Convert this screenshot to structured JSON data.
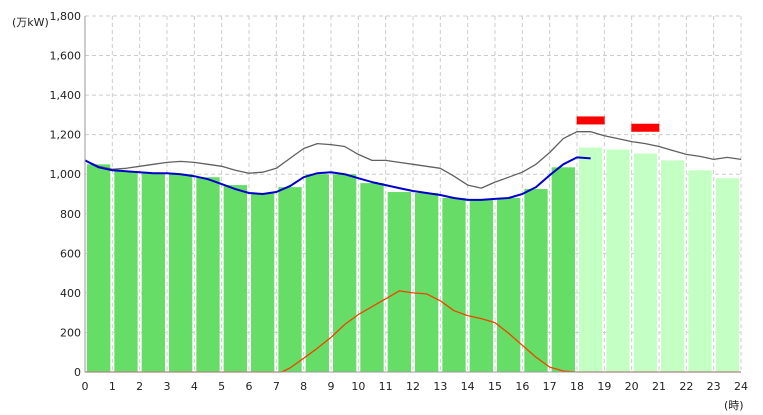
{
  "chart_data": {
    "type": "bar",
    "ylabel": "(万kW)",
    "xlabel": "(時)",
    "ylim": [
      0,
      1800
    ],
    "xlim": [
      0,
      24
    ],
    "y_ticks": [
      0,
      200,
      400,
      600,
      800,
      1000,
      1200,
      1400,
      1600,
      1800
    ],
    "y_tick_labels": [
      "0",
      "200",
      "400",
      "600",
      "800",
      "1,000",
      "1,200",
      "1,400",
      "1,600",
      "1,800"
    ],
    "x_ticks": [
      0,
      1,
      2,
      3,
      4,
      5,
      6,
      7,
      8,
      9,
      10,
      11,
      12,
      13,
      14,
      15,
      16,
      17,
      18,
      19,
      20,
      21,
      22,
      23,
      24
    ],
    "grid": true,
    "bars": {
      "hours": [
        0,
        1,
        2,
        3,
        4,
        5,
        6,
        7,
        8,
        9,
        10,
        11,
        12,
        13,
        14,
        15,
        16,
        17,
        18,
        19,
        20,
        21,
        22,
        23
      ],
      "values": [
        1050,
        1015,
        1005,
        1000,
        985,
        945,
        905,
        935,
        1000,
        1000,
        955,
        910,
        905,
        880,
        870,
        880,
        925,
        1035,
        1135,
        1125,
        1105,
        1070,
        1020,
        980
      ],
      "actual_hours": 18,
      "actual_color": "#66dd66",
      "forecast_color": "#c4ffc4"
    },
    "series": [
      {
        "color": "#606060",
        "x": [
          0,
          0.5,
          1,
          1.5,
          2,
          2.5,
          3,
          3.5,
          4,
          4.5,
          5,
          5.5,
          6,
          6.5,
          7,
          7.5,
          8,
          8.5,
          9,
          9.5,
          10,
          10.5,
          11,
          11.5,
          12,
          12.5,
          13,
          13.5,
          14,
          14.5,
          15,
          15.5,
          16,
          16.5,
          17,
          17.5,
          18,
          18.5,
          19,
          19.5,
          20,
          20.5,
          21,
          21.5,
          22,
          22.5,
          23,
          23.5,
          24
        ],
        "values": [
          1070,
          1040,
          1025,
          1030,
          1040,
          1050,
          1060,
          1065,
          1060,
          1050,
          1040,
          1020,
          1005,
          1010,
          1030,
          1080,
          1130,
          1155,
          1150,
          1140,
          1100,
          1070,
          1070,
          1060,
          1050,
          1040,
          1030,
          990,
          945,
          930,
          960,
          985,
          1010,
          1050,
          1110,
          1180,
          1215,
          1215,
          1195,
          1180,
          1165,
          1155,
          1140,
          1120,
          1100,
          1090,
          1075,
          1085,
          1075
        ]
      },
      {
        "color": "#0000cc",
        "x": [
          0,
          0.5,
          1,
          1.5,
          2,
          2.5,
          3,
          3.5,
          4,
          4.5,
          5,
          5.5,
          6,
          6.5,
          7,
          7.5,
          8,
          8.5,
          9,
          9.5,
          10,
          10.5,
          11,
          11.5,
          12,
          12.5,
          13,
          13.5,
          14,
          14.5,
          15,
          15.5,
          16,
          16.5,
          17,
          17.5,
          18,
          18.5
        ],
        "values": [
          1070,
          1035,
          1020,
          1015,
          1010,
          1005,
          1005,
          1000,
          990,
          975,
          950,
          925,
          905,
          900,
          910,
          940,
          985,
          1005,
          1010,
          1000,
          980,
          960,
          945,
          930,
          915,
          905,
          895,
          880,
          870,
          870,
          875,
          880,
          900,
          935,
          995,
          1050,
          1085,
          1080
        ]
      },
      {
        "color": "#ee4400",
        "x": [
          0,
          6,
          7.2,
          7.5,
          8,
          8.5,
          9,
          9.5,
          10,
          10.5,
          11,
          11.5,
          12,
          12.5,
          13,
          13.5,
          14,
          14.5,
          15,
          15.5,
          16,
          16.5,
          17,
          17.5,
          18,
          24
        ],
        "values": [
          0,
          0,
          0,
          20,
          70,
          120,
          175,
          240,
          290,
          330,
          370,
          410,
          400,
          395,
          360,
          310,
          285,
          270,
          250,
          195,
          135,
          75,
          25,
          5,
          0,
          0
        ]
      }
    ],
    "peak_markers": [
      {
        "start": 18,
        "end": 19,
        "value": 1272,
        "color": "#ff0000"
      },
      {
        "start": 20,
        "end": 21,
        "value": 1235,
        "color": "#ff0000"
      }
    ]
  }
}
